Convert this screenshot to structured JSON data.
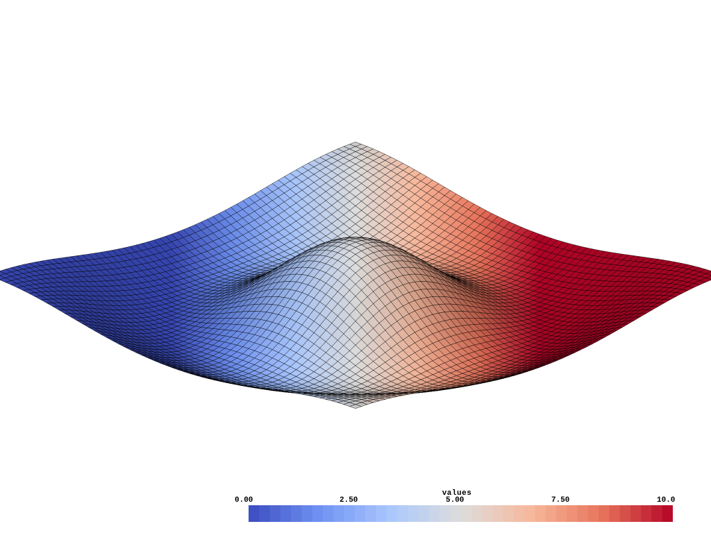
{
  "scalar_bar": {
    "title": "values",
    "ticks": [
      "0.00",
      "2.50",
      "5.00",
      "7.50",
      "10.0"
    ],
    "range": [
      0,
      10
    ],
    "colormap": "coolwarm",
    "colors": [
      "#3b4cc0",
      "#6f92f3",
      "#aac7fd",
      "#dddddd",
      "#f7b89c",
      "#e7745b",
      "#b40426"
    ]
  },
  "surface": {
    "type": "wireframe-shaded-surface",
    "edge_color": "#000000"
  }
}
